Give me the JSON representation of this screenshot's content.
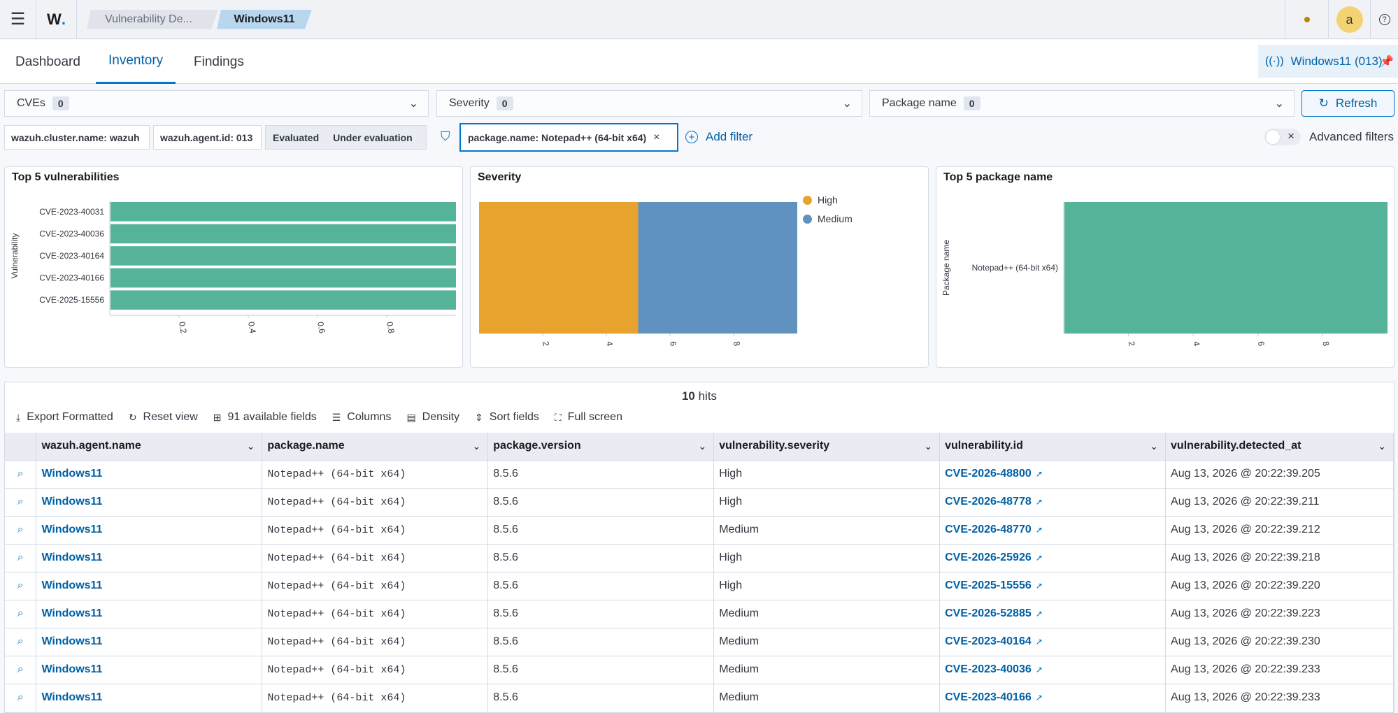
{
  "topbar": {
    "logo": "W",
    "logo_dot": ".",
    "breadcrumbs": [
      "Vulnerability De...",
      "Windows11"
    ],
    "avatar_initial": "a",
    "help_icon": "?"
  },
  "tabs": [
    "Dashboard",
    "Inventory",
    "Findings"
  ],
  "active_tab": "Inventory",
  "agent_pill": "Windows11 (013)",
  "selects": [
    {
      "label": "CVEs",
      "count": "0"
    },
    {
      "label": "Severity",
      "count": "0"
    },
    {
      "label": "Package name",
      "count": "0"
    }
  ],
  "refresh_label": "Refresh",
  "filters": {
    "cluster": "wazuh.cluster.name: wazuh",
    "agent": "wazuh.agent.id: 013",
    "evaluated": "Evaluated",
    "under_eval": "Under evaluation",
    "active": "package.name: Notepad++ (64-bit x64)",
    "add_filter": "Add filter",
    "advanced": "Advanced filters"
  },
  "panels": {
    "top5_title": "Top 5 vulnerabilities",
    "top5_ylabel": "Vulnerability",
    "severity_title": "Severity",
    "pkg_title": "Top 5 package name",
    "pkg_ylabel": "Package name"
  },
  "chart_data": [
    {
      "type": "bar",
      "title": "Top 5 vulnerabilities",
      "orientation": "horizontal",
      "ylabel": "Vulnerability",
      "categories": [
        "CVE-2023-40031",
        "CVE-2023-40036",
        "CVE-2023-40164",
        "CVE-2023-40166",
        "CVE-2025-15556"
      ],
      "values": [
        1,
        1,
        1,
        1,
        1
      ],
      "x_ticks": [
        "0.2",
        "0.4",
        "0.6",
        "0.8"
      ],
      "xlim": [
        0,
        1
      ],
      "color": "#54b399"
    },
    {
      "type": "bar",
      "title": "Severity",
      "stacked": true,
      "series": [
        {
          "name": "High",
          "value": 5,
          "color": "#e7a32e"
        },
        {
          "name": "Medium",
          "value": 5,
          "color": "#6092c0"
        }
      ],
      "x_ticks": [
        "2",
        "4",
        "6",
        "8"
      ],
      "xlim": [
        0,
        10
      ],
      "legend": "right"
    },
    {
      "type": "bar",
      "title": "Top 5 package name",
      "orientation": "horizontal",
      "ylabel": "Package name",
      "categories": [
        "Notepad++ (64-bit x64)"
      ],
      "values": [
        10
      ],
      "x_ticks": [
        "2",
        "4",
        "6",
        "8"
      ],
      "xlim": [
        0,
        10
      ],
      "color": "#54b399"
    }
  ],
  "table": {
    "hits_count": "10",
    "hits_label": "hits",
    "toolbar": [
      "Export Formatted",
      "Reset view",
      "91 available fields",
      "Columns",
      "Density",
      "Sort fields",
      "Full screen"
    ],
    "columns": [
      "wazuh.agent.name",
      "package.name",
      "package.version",
      "vulnerability.severity",
      "vulnerability.id",
      "vulnerability.detected_at"
    ],
    "rows": [
      [
        "Windows11",
        "Notepad++ (64-bit x64)",
        "8.5.6",
        "High",
        "CVE-2026-48800",
        "Aug 13, 2026 @ 20:22:39.205"
      ],
      [
        "Windows11",
        "Notepad++ (64-bit x64)",
        "8.5.6",
        "High",
        "CVE-2026-48778",
        "Aug 13, 2026 @ 20:22:39.211"
      ],
      [
        "Windows11",
        "Notepad++ (64-bit x64)",
        "8.5.6",
        "Medium",
        "CVE-2026-48770",
        "Aug 13, 2026 @ 20:22:39.212"
      ],
      [
        "Windows11",
        "Notepad++ (64-bit x64)",
        "8.5.6",
        "High",
        "CVE-2026-25926",
        "Aug 13, 2026 @ 20:22:39.218"
      ],
      [
        "Windows11",
        "Notepad++ (64-bit x64)",
        "8.5.6",
        "High",
        "CVE-2025-15556",
        "Aug 13, 2026 @ 20:22:39.220"
      ],
      [
        "Windows11",
        "Notepad++ (64-bit x64)",
        "8.5.6",
        "Medium",
        "CVE-2026-52885",
        "Aug 13, 2026 @ 20:22:39.223"
      ],
      [
        "Windows11",
        "Notepad++ (64-bit x64)",
        "8.5.6",
        "Medium",
        "CVE-2023-40164",
        "Aug 13, 2026 @ 20:22:39.230"
      ],
      [
        "Windows11",
        "Notepad++ (64-bit x64)",
        "8.5.6",
        "Medium",
        "CVE-2023-40036",
        "Aug 13, 2026 @ 20:22:39.233"
      ],
      [
        "Windows11",
        "Notepad++ (64-bit x64)",
        "8.5.6",
        "Medium",
        "CVE-2023-40166",
        "Aug 13, 2026 @ 20:22:39.233"
      ]
    ]
  }
}
